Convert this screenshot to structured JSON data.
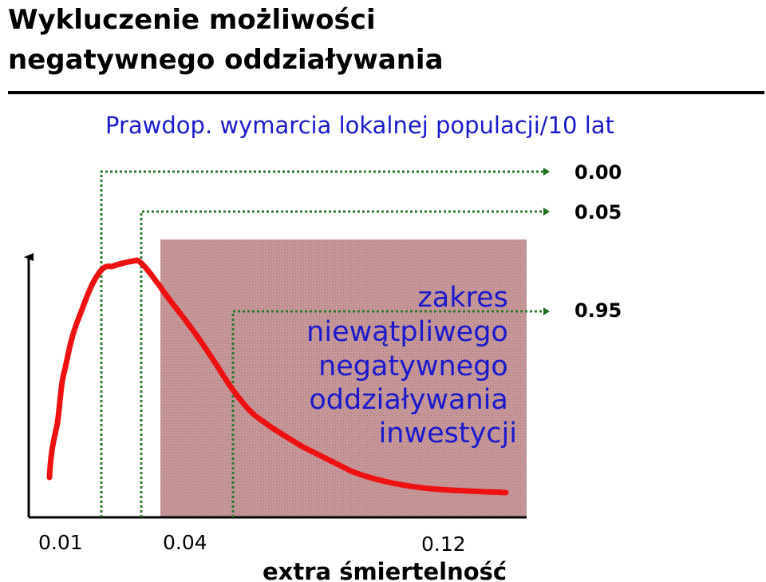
{
  "title": {
    "line1": "Wykluczenie możliwości",
    "line2": "negatywnego oddziaływania"
  },
  "subtitle": "Prawdop. wymarcia lokalnej populacji/10 lat",
  "probability_labels": [
    "0.00",
    "0.05",
    "0.95"
  ],
  "zone_label": [
    "zakres",
    "niewątpliwego",
    "negatywnego",
    "oddziaływania",
    "inwestycji"
  ],
  "x_tick_labels": [
    "0.01",
    "0.04",
    "0.12"
  ],
  "x_axis_label": "extra śmiertelność",
  "colors": {
    "curve": "#ee1111",
    "zone": "#c08a8c",
    "guide": "#2a7a2a",
    "subtitle": "#1a1acc"
  }
}
